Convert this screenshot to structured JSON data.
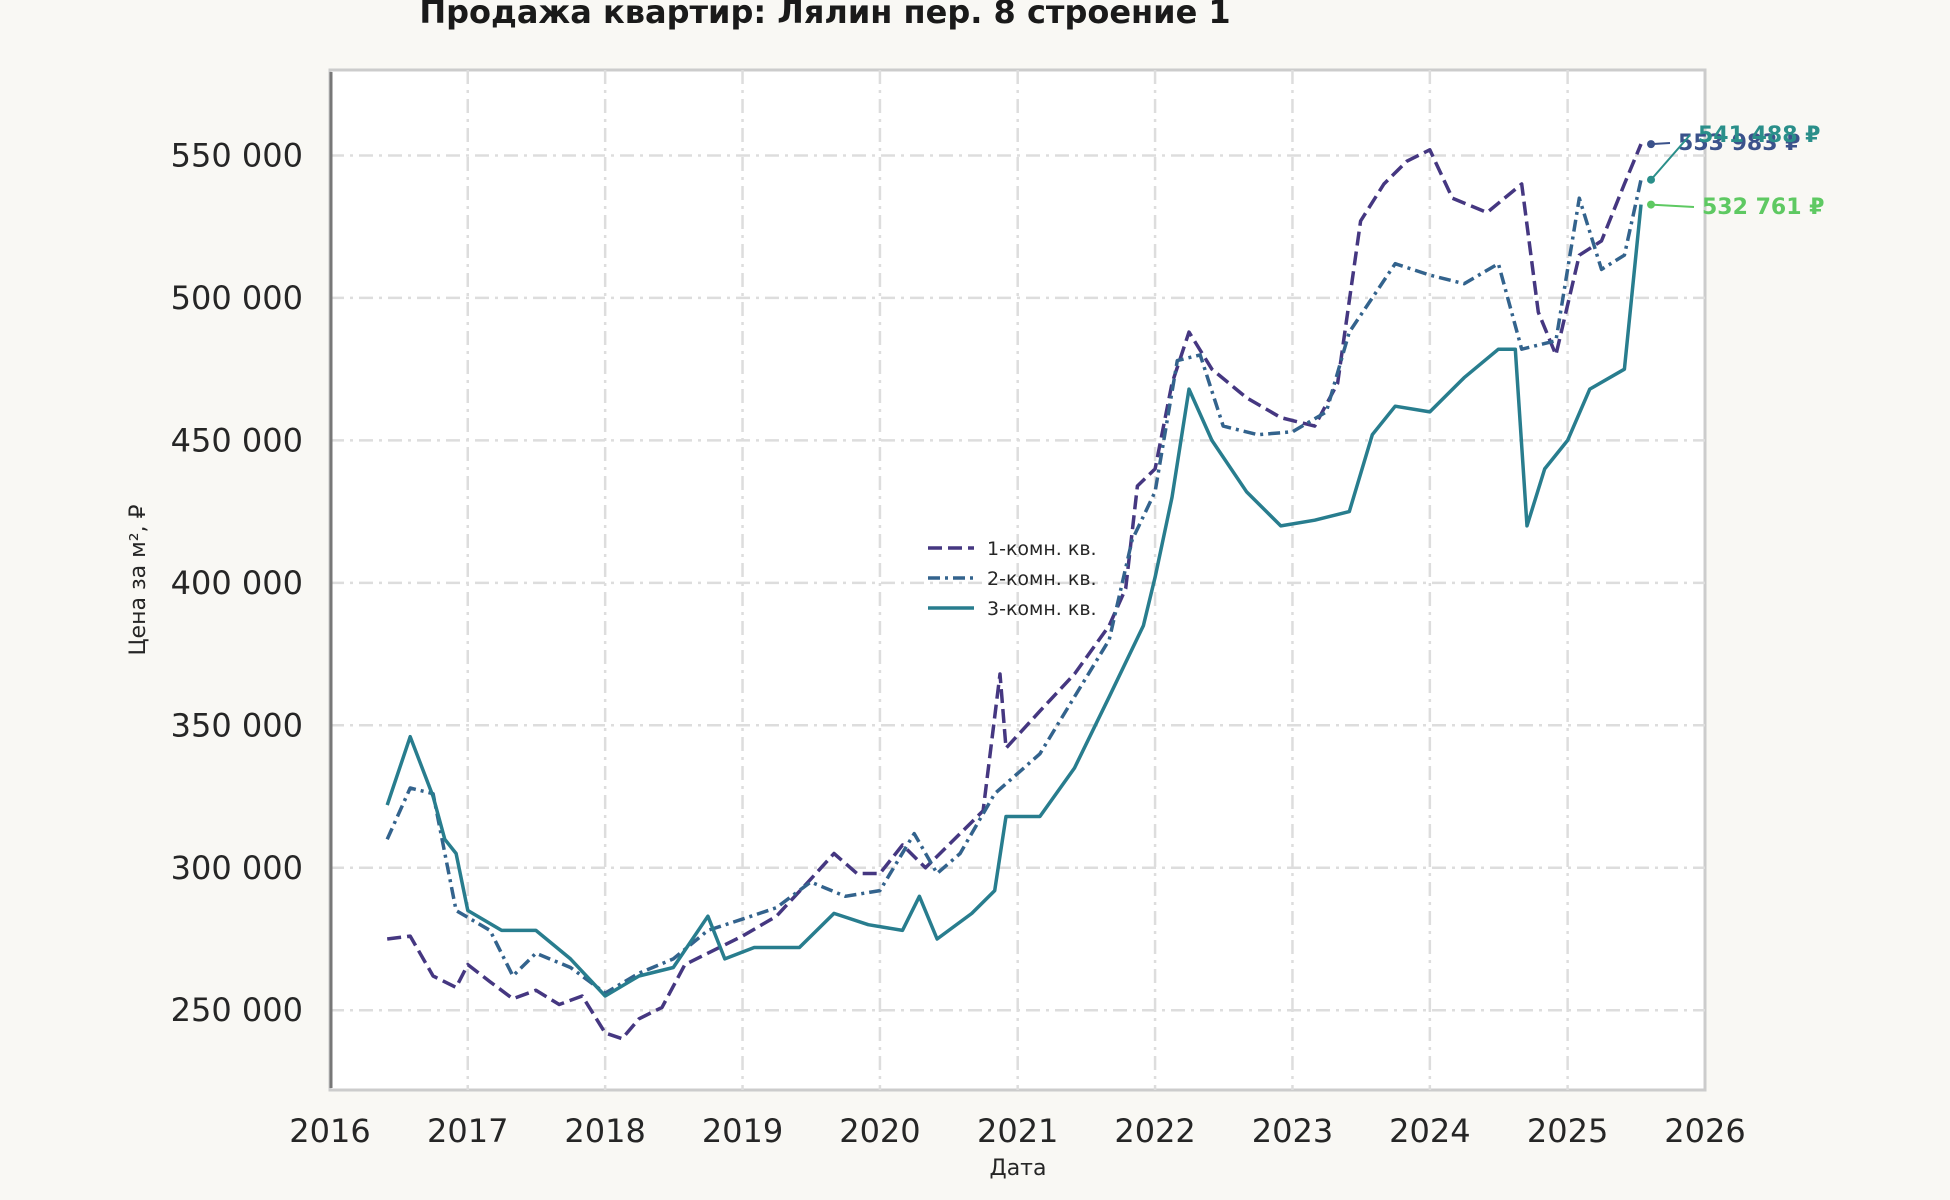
{
  "chart_data": {
    "type": "line",
    "title": "Продажа квартир: Лялин пер. 8 строение 1",
    "xlabel": "Дата",
    "ylabel": "Цена за м², ₽",
    "x_ticks": [
      "2016",
      "2017",
      "2018",
      "2019",
      "2020",
      "2021",
      "2022",
      "2023",
      "2024",
      "2025",
      "2026"
    ],
    "y_ticks": [
      250000,
      300000,
      350000,
      400000,
      450000,
      500000,
      550000
    ],
    "y_tick_labels": [
      "250 000",
      "300 000",
      "350 000",
      "400 000",
      "450 000",
      "500 000",
      "550 000"
    ],
    "xlim": [
      "2016-01-01",
      "2026-01-01"
    ],
    "ylim": [
      222000,
      580000
    ],
    "grid": true,
    "legend_position": "center",
    "series": [
      {
        "name": "1-комн. кв.",
        "color": "#453781",
        "dash": "dashed",
        "end_label": "553 983 ₽",
        "end_label_color": "#3b528b",
        "points": [
          [
            "2016-06-01",
            275000
          ],
          [
            "2016-08-01",
            276000
          ],
          [
            "2016-10-01",
            262000
          ],
          [
            "2016-12-01",
            258000
          ],
          [
            "2017-01-01",
            266000
          ],
          [
            "2017-03-01",
            260000
          ],
          [
            "2017-05-01",
            254000
          ],
          [
            "2017-07-01",
            257000
          ],
          [
            "2017-09-01",
            252000
          ],
          [
            "2017-11-01",
            255000
          ],
          [
            "2018-01-01",
            242000
          ],
          [
            "2018-02-15",
            240000
          ],
          [
            "2018-04-01",
            247000
          ],
          [
            "2018-06-01",
            251000
          ],
          [
            "2018-08-01",
            266000
          ],
          [
            "2018-10-01",
            270000
          ],
          [
            "2019-01-01",
            276000
          ],
          [
            "2019-04-01",
            283000
          ],
          [
            "2019-07-01",
            296000
          ],
          [
            "2019-09-01",
            305000
          ],
          [
            "2019-11-01",
            298000
          ],
          [
            "2020-01-01",
            298000
          ],
          [
            "2020-03-01",
            308000
          ],
          [
            "2020-05-01",
            300000
          ],
          [
            "2020-08-01",
            312000
          ],
          [
            "2020-10-01",
            320000
          ],
          [
            "2020-11-15",
            368000
          ],
          [
            "2020-12-01",
            342000
          ],
          [
            "2021-03-01",
            355000
          ],
          [
            "2021-06-01",
            368000
          ],
          [
            "2021-09-01",
            385000
          ],
          [
            "2021-10-15",
            398000
          ],
          [
            "2021-11-15",
            434000
          ],
          [
            "2022-01-01",
            440000
          ],
          [
            "2022-02-15",
            470000
          ],
          [
            "2022-04-01",
            488000
          ],
          [
            "2022-06-01",
            475000
          ],
          [
            "2022-09-01",
            465000
          ],
          [
            "2022-12-01",
            458000
          ],
          [
            "2023-03-01",
            455000
          ],
          [
            "2023-05-01",
            470000
          ],
          [
            "2023-07-01",
            527000
          ],
          [
            "2023-09-01",
            540000
          ],
          [
            "2023-11-01",
            548000
          ],
          [
            "2024-01-01",
            552000
          ],
          [
            "2024-03-01",
            535000
          ],
          [
            "2024-06-01",
            530000
          ],
          [
            "2024-09-01",
            540000
          ],
          [
            "2024-10-15",
            495000
          ],
          [
            "2024-12-01",
            480000
          ],
          [
            "2025-02-01",
            515000
          ],
          [
            "2025-04-01",
            520000
          ],
          [
            "2025-06-01",
            540000
          ],
          [
            "2025-07-15",
            553983
          ]
        ]
      },
      {
        "name": "2-комн. кв.",
        "color": "#33638d",
        "dash": "dashdot",
        "end_label": "541 488 ₽",
        "end_label_color": "#2a8f8a",
        "points": [
          [
            "2016-06-01",
            310000
          ],
          [
            "2016-08-01",
            328000
          ],
          [
            "2016-10-01",
            326000
          ],
          [
            "2016-12-01",
            285000
          ],
          [
            "2017-03-01",
            278000
          ],
          [
            "2017-05-01",
            262000
          ],
          [
            "2017-07-01",
            270000
          ],
          [
            "2017-10-01",
            265000
          ],
          [
            "2018-01-01",
            256000
          ],
          [
            "2018-04-01",
            263000
          ],
          [
            "2018-07-01",
            268000
          ],
          [
            "2018-10-01",
            278000
          ],
          [
            "2019-01-01",
            282000
          ],
          [
            "2019-04-01",
            286000
          ],
          [
            "2019-07-01",
            295000
          ],
          [
            "2019-10-01",
            290000
          ],
          [
            "2020-01-01",
            292000
          ],
          [
            "2020-04-01",
            312000
          ],
          [
            "2020-06-01",
            298000
          ],
          [
            "2020-08-01",
            305000
          ],
          [
            "2020-11-01",
            326000
          ],
          [
            "2021-03-01",
            340000
          ],
          [
            "2021-06-01",
            360000
          ],
          [
            "2021-09-01",
            380000
          ],
          [
            "2021-11-01",
            415000
          ],
          [
            "2022-01-01",
            432000
          ],
          [
            "2022-03-01",
            478000
          ],
          [
            "2022-05-01",
            480000
          ],
          [
            "2022-07-01",
            455000
          ],
          [
            "2022-10-01",
            452000
          ],
          [
            "2023-01-01",
            453000
          ],
          [
            "2023-04-01",
            460000
          ],
          [
            "2023-06-01",
            488000
          ],
          [
            "2023-08-01",
            500000
          ],
          [
            "2023-10-01",
            512000
          ],
          [
            "2024-01-01",
            508000
          ],
          [
            "2024-04-01",
            505000
          ],
          [
            "2024-07-01",
            512000
          ],
          [
            "2024-09-01",
            482000
          ],
          [
            "2024-12-01",
            485000
          ],
          [
            "2025-02-01",
            535000
          ],
          [
            "2025-04-01",
            510000
          ],
          [
            "2025-06-01",
            515000
          ],
          [
            "2025-07-15",
            541488
          ]
        ]
      },
      {
        "name": "3-комн. кв.",
        "color": "#287d8e",
        "dash": "solid",
        "end_label": "532 761 ₽",
        "end_label_color": "#5ec962",
        "points": [
          [
            "2016-06-01",
            322000
          ],
          [
            "2016-08-01",
            346000
          ],
          [
            "2016-10-01",
            325000
          ],
          [
            "2016-11-01",
            310000
          ],
          [
            "2016-12-01",
            305000
          ],
          [
            "2017-01-01",
            285000
          ],
          [
            "2017-04-01",
            278000
          ],
          [
            "2017-07-01",
            278000
          ],
          [
            "2017-10-01",
            268000
          ],
          [
            "2018-01-01",
            255000
          ],
          [
            "2018-04-01",
            262000
          ],
          [
            "2018-07-01",
            265000
          ],
          [
            "2018-10-01",
            283000
          ],
          [
            "2018-11-15",
            268000
          ],
          [
            "2019-02-01",
            272000
          ],
          [
            "2019-06-01",
            272000
          ],
          [
            "2019-09-01",
            284000
          ],
          [
            "2019-12-01",
            280000
          ],
          [
            "2020-03-01",
            278000
          ],
          [
            "2020-04-15",
            290000
          ],
          [
            "2020-06-01",
            275000
          ],
          [
            "2020-09-01",
            284000
          ],
          [
            "2020-11-01",
            292000
          ],
          [
            "2020-12-01",
            318000
          ],
          [
            "2021-03-01",
            318000
          ],
          [
            "2021-06-01",
            335000
          ],
          [
            "2021-09-01",
            360000
          ],
          [
            "2021-12-01",
            385000
          ],
          [
            "2022-01-01",
            402000
          ],
          [
            "2022-02-15",
            430000
          ],
          [
            "2022-04-01",
            468000
          ],
          [
            "2022-06-01",
            450000
          ],
          [
            "2022-09-01",
            432000
          ],
          [
            "2022-12-01",
            420000
          ],
          [
            "2023-03-01",
            422000
          ],
          [
            "2023-06-01",
            425000
          ],
          [
            "2023-08-01",
            452000
          ],
          [
            "2023-10-01",
            462000
          ],
          [
            "2024-01-01",
            460000
          ],
          [
            "2024-04-01",
            472000
          ],
          [
            "2024-07-01",
            482000
          ],
          [
            "2024-08-15",
            482000
          ],
          [
            "2024-09-15",
            420000
          ],
          [
            "2024-11-01",
            440000
          ],
          [
            "2025-01-01",
            450000
          ],
          [
            "2025-03-01",
            468000
          ],
          [
            "2025-06-01",
            475000
          ],
          [
            "2025-07-15",
            532761
          ]
        ]
      }
    ]
  }
}
